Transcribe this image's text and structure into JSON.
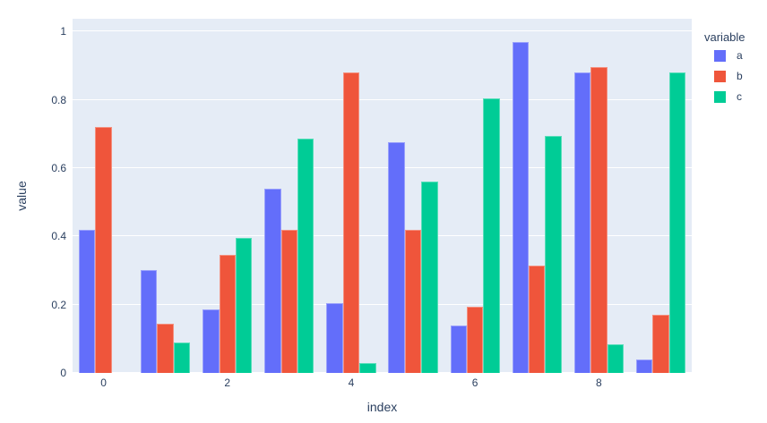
{
  "figure": {
    "background": "#FFFFFF",
    "plot_background": "#E5ECF6",
    "grid_color": "#FFFFFF",
    "text_color": "#2A3F5F"
  },
  "chart_data": {
    "type": "bar",
    "barmode": "group",
    "title": "",
    "xlabel": "index",
    "ylabel": "value",
    "x": [
      0,
      1,
      2,
      3,
      4,
      5,
      6,
      7,
      8,
      9
    ],
    "xticks": [
      0,
      2,
      4,
      6,
      8
    ],
    "yticks": [
      0,
      0.2,
      0.4,
      0.6,
      0.8,
      1
    ],
    "ylim": [
      0,
      1.037
    ],
    "grid": true,
    "legend": {
      "title": "variable",
      "position": "top-right-outside"
    },
    "series": [
      {
        "name": "a",
        "color": "#636EFA",
        "values": [
          0.42,
          0.3,
          0.185,
          0.54,
          0.205,
          0.675,
          0.14,
          0.97,
          0.88,
          0.04
        ]
      },
      {
        "name": "b",
        "color": "#EF553B",
        "values": [
          0.72,
          0.145,
          0.345,
          0.42,
          0.88,
          0.42,
          0.195,
          0.315,
          0.895,
          0.17
        ]
      },
      {
        "name": "c",
        "color": "#00CC96",
        "values": [
          0.0,
          0.09,
          0.395,
          0.685,
          0.03,
          0.56,
          0.805,
          0.695,
          0.085,
          0.88
        ]
      }
    ]
  }
}
